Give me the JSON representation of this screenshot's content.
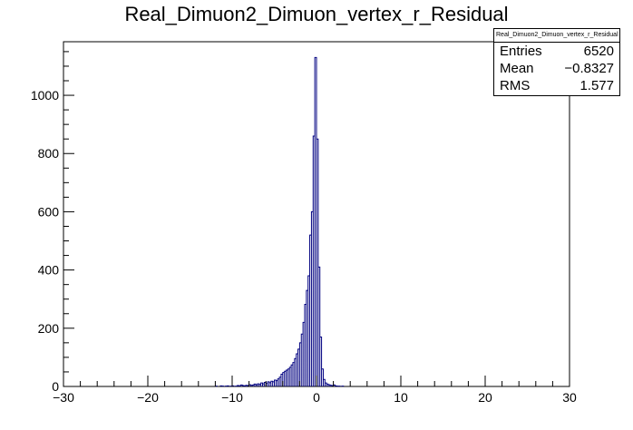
{
  "chart_data": {
    "type": "histogram",
    "title": "Real_Dimuon2_Dimuon_vertex_r_Residual",
    "xlabel": "",
    "ylabel": "",
    "xlim": [
      -30,
      30
    ],
    "ylim": [
      0,
      1184
    ],
    "x_ticks": [
      -30,
      -20,
      -10,
      0,
      10,
      20,
      30
    ],
    "y_ticks": [
      0,
      200,
      400,
      600,
      800,
      1000
    ],
    "x_tick_labels": [
      "−30",
      "−20",
      "−10",
      "0",
      "10",
      "20",
      "30"
    ],
    "y_tick_labels": [
      "0",
      "200",
      "400",
      "600",
      "800",
      "1000"
    ],
    "grid": false,
    "line_color": "#000080",
    "bin_width": 0.2,
    "bins": [
      [
        -12.0,
        1
      ],
      [
        -11.4,
        2
      ],
      [
        -11.2,
        1
      ],
      [
        -10.8,
        1
      ],
      [
        -10.6,
        2
      ],
      [
        -10.2,
        1
      ],
      [
        -10.0,
        2
      ],
      [
        -9.6,
        1
      ],
      [
        -9.4,
        3
      ],
      [
        -9.2,
        2
      ],
      [
        -9.0,
        5
      ],
      [
        -8.8,
        3
      ],
      [
        -8.6,
        2
      ],
      [
        -8.4,
        4
      ],
      [
        -8.2,
        3
      ],
      [
        -8.0,
        6
      ],
      [
        -7.8,
        4
      ],
      [
        -7.6,
        5
      ],
      [
        -7.4,
        8
      ],
      [
        -7.2,
        6
      ],
      [
        -7.0,
        9
      ],
      [
        -6.8,
        7
      ],
      [
        -6.6,
        12
      ],
      [
        -6.4,
        9
      ],
      [
        -6.2,
        14
      ],
      [
        -6.0,
        10
      ],
      [
        -5.8,
        16
      ],
      [
        -5.6,
        13
      ],
      [
        -5.4,
        18
      ],
      [
        -5.2,
        16
      ],
      [
        -5.0,
        22
      ],
      [
        -4.8,
        20
      ],
      [
        -4.6,
        26
      ],
      [
        -4.4,
        32
      ],
      [
        -4.2,
        42
      ],
      [
        -4.0,
        48
      ],
      [
        -3.8,
        52
      ],
      [
        -3.6,
        56
      ],
      [
        -3.4,
        60
      ],
      [
        -3.2,
        66
      ],
      [
        -3.0,
        74
      ],
      [
        -2.8,
        82
      ],
      [
        -2.6,
        96
      ],
      [
        -2.4,
        112
      ],
      [
        -2.2,
        128
      ],
      [
        -2.0,
        150
      ],
      [
        -1.8,
        180
      ],
      [
        -1.6,
        220
      ],
      [
        -1.4,
        282
      ],
      [
        -1.2,
        330
      ],
      [
        -1.0,
        380
      ],
      [
        -0.8,
        520
      ],
      [
        -0.6,
        600
      ],
      [
        -0.4,
        860
      ],
      [
        -0.2,
        1130
      ],
      [
        0.0,
        850
      ],
      [
        0.2,
        410
      ],
      [
        0.4,
        170
      ],
      [
        0.6,
        60
      ],
      [
        0.8,
        24
      ],
      [
        1.0,
        12
      ],
      [
        1.2,
        8
      ],
      [
        1.4,
        6
      ],
      [
        1.6,
        4
      ],
      [
        1.8,
        3
      ],
      [
        2.0,
        5
      ],
      [
        2.2,
        2
      ],
      [
        2.4,
        1
      ],
      [
        2.6,
        1
      ],
      [
        3.0,
        1
      ]
    ]
  },
  "stats": {
    "title": "Real_Dimuon2_Dimuon_vertex_r_Residual",
    "rows": [
      {
        "label": "Entries",
        "value": "6520"
      },
      {
        "label": "Mean",
        "value": "−0.8327"
      },
      {
        "label": "RMS",
        "value": "1.577"
      }
    ]
  }
}
